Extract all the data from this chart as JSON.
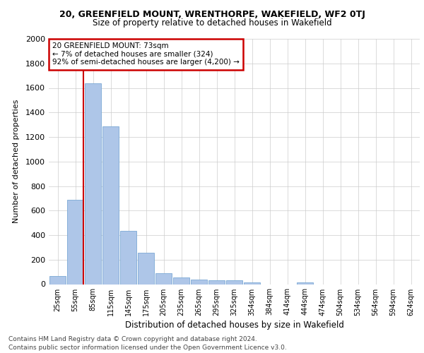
{
  "title1": "20, GREENFIELD MOUNT, WRENTHORPE, WAKEFIELD, WF2 0TJ",
  "title2": "Size of property relative to detached houses in Wakefield",
  "xlabel": "Distribution of detached houses by size in Wakefield",
  "ylabel": "Number of detached properties",
  "categories": [
    "25sqm",
    "55sqm",
    "85sqm",
    "115sqm",
    "145sqm",
    "175sqm",
    "205sqm",
    "235sqm",
    "265sqm",
    "295sqm",
    "325sqm",
    "354sqm",
    "384sqm",
    "414sqm",
    "444sqm",
    "474sqm",
    "504sqm",
    "534sqm",
    "564sqm",
    "594sqm",
    "624sqm"
  ],
  "values": [
    65,
    685,
    1635,
    1285,
    435,
    255,
    90,
    55,
    40,
    30,
    30,
    15,
    0,
    0,
    15,
    0,
    0,
    0,
    0,
    0,
    0
  ],
  "bar_color": "#aec6e8",
  "bar_edge_color": "#7aa8d4",
  "vline_color": "#cc0000",
  "annotation_text": "20 GREENFIELD MOUNT: 73sqm\n← 7% of detached houses are smaller (324)\n92% of semi-detached houses are larger (4,200) →",
  "annotation_box_color": "#ffffff",
  "annotation_box_edge": "#cc0000",
  "ylim": [
    0,
    2000
  ],
  "yticks": [
    0,
    200,
    400,
    600,
    800,
    1000,
    1200,
    1400,
    1600,
    1800,
    2000
  ],
  "background_color": "#ffffff",
  "grid_color": "#cccccc",
  "footer1": "Contains HM Land Registry data © Crown copyright and database right 2024.",
  "footer2": "Contains public sector information licensed under the Open Government Licence v3.0."
}
